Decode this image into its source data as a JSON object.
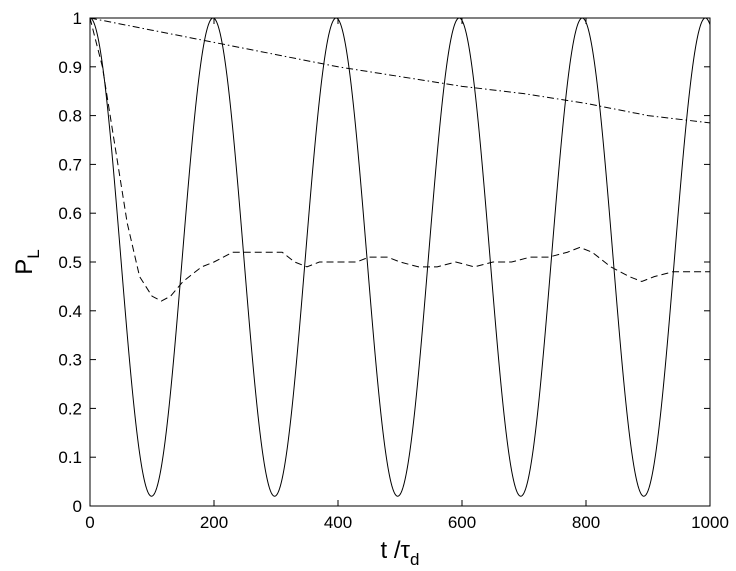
{
  "chart_data": {
    "type": "line",
    "title": "",
    "xlabel": {
      "main": "t /τ",
      "sub": "d"
    },
    "ylabel": {
      "main": "P",
      "sub": "L"
    },
    "xlim": [
      0,
      1000
    ],
    "ylim": [
      0,
      1
    ],
    "xticks": [
      0,
      200,
      400,
      600,
      800,
      1000
    ],
    "yticks": [
      0,
      0.1,
      0.2,
      0.3,
      0.4,
      0.5,
      0.6,
      0.7,
      0.8,
      0.9,
      1
    ],
    "grid": false,
    "legend": "none",
    "series": [
      {
        "style": "solid",
        "color": "#000000",
        "description_type": "oscillation",
        "x_start": 0,
        "x_end": 1000,
        "period": 198.5,
        "max": 1.0,
        "min": 0.02
      },
      {
        "style": "dashed",
        "color": "#000000",
        "x": [
          0,
          20,
          40,
          60,
          80,
          100,
          115,
          130,
          150,
          180,
          200,
          230,
          260,
          290,
          310,
          330,
          350,
          370,
          400,
          430,
          450,
          480,
          500,
          530,
          560,
          590,
          620,
          650,
          680,
          710,
          740,
          770,
          790,
          810,
          840,
          870,
          890,
          910,
          940,
          970,
          1000
        ],
        "y": [
          1.0,
          0.9,
          0.74,
          0.58,
          0.47,
          0.43,
          0.42,
          0.43,
          0.46,
          0.49,
          0.5,
          0.52,
          0.52,
          0.52,
          0.52,
          0.5,
          0.49,
          0.5,
          0.5,
          0.5,
          0.51,
          0.51,
          0.5,
          0.49,
          0.49,
          0.5,
          0.49,
          0.5,
          0.5,
          0.51,
          0.51,
          0.52,
          0.53,
          0.52,
          0.49,
          0.47,
          0.46,
          0.47,
          0.48,
          0.48,
          0.48
        ]
      },
      {
        "style": "dashdot",
        "color": "#000000",
        "x": [
          0,
          100,
          200,
          300,
          400,
          500,
          600,
          700,
          800,
          900,
          1000
        ],
        "y": [
          1.0,
          0.975,
          0.95,
          0.925,
          0.9,
          0.88,
          0.86,
          0.845,
          0.825,
          0.8,
          0.785
        ]
      }
    ]
  }
}
